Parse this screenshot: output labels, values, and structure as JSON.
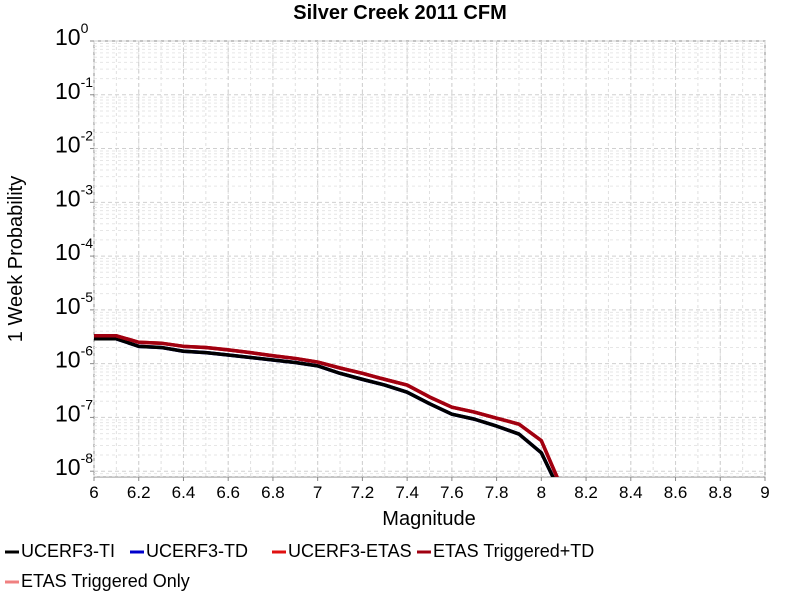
{
  "chart_data": {
    "type": "line",
    "title": "Silver Creek 2011 CFM",
    "x_label": "Magnitude",
    "y_label": "1 Week Probability",
    "log_y": true,
    "grid": true,
    "legend": "bottom",
    "x": [
      6.0,
      6.1,
      6.2,
      6.3,
      6.4,
      6.5,
      6.6,
      6.7,
      6.8,
      6.9,
      7.0,
      7.1,
      7.2,
      7.3,
      7.4,
      7.5,
      7.6,
      7.7,
      7.8,
      7.9,
      8.0,
      8.1
    ],
    "series": [
      {
        "name": "UCERF3-TI",
        "color": "#000000",
        "values": [
          2.9e-06,
          2.9e-06,
          2.1e-06,
          2e-06,
          1.7e-06,
          1.6e-06,
          1.45e-06,
          1.3e-06,
          1.17e-06,
          1.05e-06,
          9.1e-07,
          6.6e-07,
          5.1e-07,
          4e-07,
          2.95e-07,
          1.8e-07,
          1.15e-07,
          9.3e-08,
          6.9e-08,
          4.9e-08,
          2.2e-08,
          3e-09
        ]
      },
      {
        "name": "UCERF3-TD",
        "color": "#0000cc",
        "values": [
          2.9e-06,
          2.9e-06,
          2.1e-06,
          2e-06,
          1.7e-06,
          1.6e-06,
          1.45e-06,
          1.3e-06,
          1.17e-06,
          1.05e-06,
          9.1e-07,
          6.6e-07,
          5.1e-07,
          4e-07,
          2.95e-07,
          1.8e-07,
          1.15e-07,
          9.3e-08,
          6.9e-08,
          4.9e-08,
          2.2e-08,
          3e-09
        ]
      },
      {
        "name": "UCERF3-ETAS",
        "color": "#e01010",
        "values": [
          3.3e-06,
          3.3e-06,
          2.5e-06,
          2.4e-06,
          2.1e-06,
          2e-06,
          1.8e-06,
          1.6e-06,
          1.4e-06,
          1.25e-06,
          1.07e-06,
          8.3e-07,
          6.6e-07,
          5.1e-07,
          4e-07,
          2.4e-07,
          1.55e-07,
          1.26e-07,
          9.7e-08,
          7.5e-08,
          3.7e-08,
          4e-09
        ]
      },
      {
        "name": "ETAS Triggered+TD",
        "color": "#a00010",
        "values": [
          3.3e-06,
          3.3e-06,
          2.5e-06,
          2.4e-06,
          2.1e-06,
          2e-06,
          1.8e-06,
          1.6e-06,
          1.4e-06,
          1.25e-06,
          1.07e-06,
          8.3e-07,
          6.6e-07,
          5.1e-07,
          4e-07,
          2.4e-07,
          1.55e-07,
          1.26e-07,
          9.7e-08,
          7.5e-08,
          3.7e-08,
          4e-09
        ]
      },
      {
        "name": "ETAS Triggered Only",
        "color": "#f08080",
        "values": [
          null,
          null,
          null,
          null,
          null,
          null,
          null,
          null,
          null,
          null,
          null,
          null,
          null,
          null,
          null,
          null,
          null,
          null,
          null,
          null,
          null,
          null
        ]
      }
    ],
    "xlim": [
      6,
      9
    ],
    "xticks": [
      6,
      6.2,
      6.4,
      6.6,
      6.8,
      7,
      7.2,
      7.4,
      7.6,
      7.8,
      8,
      8.2,
      8.4,
      8.6,
      8.8,
      9
    ],
    "ylim": [
      7.8e-09,
      1
    ],
    "yticks": [
      {
        "value": 1,
        "label": "10",
        "exponent": "0"
      },
      {
        "value": 0.1,
        "label": "10",
        "exponent": "-1"
      },
      {
        "value": 0.01,
        "label": "10",
        "exponent": "-2"
      },
      {
        "value": 0.001,
        "label": "10",
        "exponent": "-3"
      },
      {
        "value": 0.0001,
        "label": "10",
        "exponent": "-4"
      },
      {
        "value": 1e-05,
        "label": "10",
        "exponent": "-5"
      },
      {
        "value": 1e-06,
        "label": "10",
        "exponent": "-6"
      },
      {
        "value": 1e-07,
        "label": "10",
        "exponent": "-7"
      },
      {
        "value": 1e-08,
        "label": "10",
        "exponent": "-8"
      }
    ]
  }
}
